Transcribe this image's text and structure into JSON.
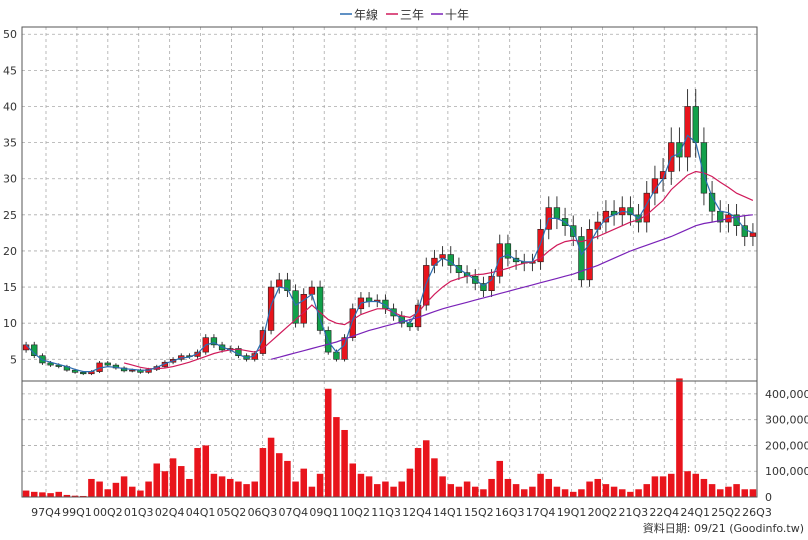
{
  "chart_data": {
    "type": "candlestick",
    "legend": {
      "placement": "top-center",
      "items": [
        {
          "name": "年線",
          "color": "#2b6cb0"
        },
        {
          "name": "三年",
          "color": "#d01a5a"
        },
        {
          "name": "十年",
          "color": "#7a22b8"
        }
      ]
    },
    "price_axis": {
      "ticks": [
        5,
        10,
        15,
        20,
        25,
        30,
        35,
        40,
        45,
        50
      ],
      "ylim": [
        2,
        51
      ],
      "position": "left"
    },
    "volume_axis": {
      "ticks": [
        "0",
        "100,000",
        "200,000",
        "300,000",
        "400,000"
      ],
      "values": [
        0,
        100000,
        200000,
        300000,
        400000
      ],
      "ylim": [
        0,
        450000
      ],
      "position": "right"
    },
    "x_labels": [
      "97Q4",
      "99Q1",
      "00Q2",
      "01Q3",
      "02Q4",
      "04Q1",
      "05Q2",
      "06Q3",
      "07Q4",
      "09Q1",
      "10Q2",
      "11Q3",
      "12Q4",
      "14Q1",
      "15Q2",
      "16Q3",
      "17Q4",
      "19Q1",
      "20Q2",
      "21Q3",
      "22Q4",
      "24Q1",
      "25Q2",
      "26Q3"
    ],
    "grid": true,
    "colors": {
      "up": "#e8141c",
      "down": "#12a04a",
      "volume": "#e8141c"
    },
    "series": {
      "close": [
        7,
        5.5,
        4.5,
        4.2,
        4.0,
        3.5,
        3.2,
        3.0,
        3.3,
        4.5,
        4.2,
        3.8,
        3.4,
        3.5,
        3.2,
        3.6,
        4.0,
        4.6,
        5.0,
        5.5,
        5.4,
        6.0,
        8.0,
        7.0,
        6.3,
        6.5,
        5.5,
        5.0,
        5.8,
        9.0,
        15.0,
        16.0,
        14.5,
        10.0,
        14.0,
        15.0,
        9.0,
        6.0,
        5.0,
        8.0,
        12.0,
        13.5,
        13.0,
        13.2,
        12.0,
        11.0,
        10.0,
        9.5,
        12.5,
        18.0,
        19.0,
        19.5,
        18.0,
        17.0,
        16.5,
        15.5,
        14.5,
        16.5,
        21.0,
        19.0,
        18.5,
        18.3,
        18.5,
        23.0,
        26.0,
        24.5,
        23.5,
        22.0,
        16.0,
        23.0,
        24.0,
        25.5,
        25.0,
        26.0,
        25.0,
        24.0,
        28.0,
        30.0,
        31.0,
        35.0,
        33.0,
        40.0,
        35.0,
        28.0,
        25.5,
        24.0,
        25.0,
        23.5,
        22.0,
        22.5
      ],
      "volume": [
        25000,
        20000,
        18000,
        15000,
        20000,
        8000,
        5000,
        4000,
        70000,
        60000,
        30000,
        55000,
        80000,
        40000,
        25000,
        60000,
        130000,
        100000,
        150000,
        120000,
        70000,
        190000,
        200000,
        90000,
        80000,
        70000,
        60000,
        50000,
        60000,
        190000,
        230000,
        170000,
        140000,
        60000,
        110000,
        40000,
        90000,
        420000,
        310000,
        260000,
        130000,
        90000,
        80000,
        50000,
        60000,
        40000,
        60000,
        110000,
        190000,
        220000,
        150000,
        80000,
        50000,
        40000,
        60000,
        40000,
        30000,
        70000,
        140000,
        70000,
        50000,
        30000,
        40000,
        90000,
        70000,
        40000,
        30000,
        20000,
        30000,
        60000,
        70000,
        50000,
        40000,
        30000,
        20000,
        30000,
        50000,
        80000,
        80000,
        90000,
        460000,
        100000,
        90000,
        70000,
        50000,
        30000,
        40000,
        50000,
        30000,
        30000
      ],
      "ma_year": [
        7.0,
        5.8,
        4.9,
        4.6,
        4.3,
        4.0,
        3.6,
        3.3,
        3.3,
        3.8,
        4.0,
        3.9,
        3.7,
        3.6,
        3.5,
        3.5,
        3.9,
        4.4,
        4.8,
        5.2,
        5.3,
        5.8,
        7.0,
        7.3,
        6.7,
        6.3,
        5.7,
        5.2,
        5.5,
        7.8,
        12.5,
        15.0,
        14.8,
        12.5,
        13.2,
        14.0,
        10.5,
        7.5,
        6.0,
        7.0,
        10.5,
        12.8,
        13.0,
        13.0,
        12.5,
        11.5,
        10.5,
        10.0,
        11.8,
        15.5,
        18.0,
        19.0,
        18.5,
        17.5,
        16.8,
        16.0,
        15.2,
        16.0,
        19.0,
        19.5,
        18.8,
        18.5,
        18.5,
        21.0,
        24.5,
        24.5,
        24.0,
        23.0,
        19.5,
        21.0,
        23.0,
        24.5,
        25.0,
        25.5,
        25.3,
        24.5,
        26.5,
        28.5,
        30.0,
        33.0,
        33.5,
        36.0,
        35.0,
        30.5,
        27.5,
        25.5,
        25.3,
        24.5,
        23.0,
        22.5
      ],
      "ma_3y": [
        null,
        null,
        null,
        null,
        null,
        null,
        null,
        null,
        null,
        null,
        null,
        null,
        4.5,
        4.2,
        3.9,
        3.7,
        3.7,
        3.8,
        4.0,
        4.3,
        4.6,
        5.0,
        5.4,
        5.8,
        6.1,
        6.3,
        6.4,
        6.2,
        6.0,
        6.5,
        7.5,
        8.5,
        9.5,
        10.5,
        11.5,
        12.5,
        11.5,
        10.5,
        10.0,
        9.8,
        10.5,
        11.2,
        11.6,
        12.0,
        12.0,
        11.5,
        11.0,
        10.8,
        11.5,
        12.8,
        14.0,
        15.0,
        15.8,
        16.2,
        16.5,
        16.7,
        16.8,
        17.0,
        17.3,
        17.6,
        18.0,
        18.3,
        18.5,
        19.0,
        20.0,
        20.8,
        21.3,
        21.5,
        21.3,
        21.6,
        22.0,
        22.5,
        23.0,
        23.5,
        24.0,
        24.3,
        25.0,
        26.0,
        27.0,
        28.5,
        29.5,
        30.5,
        31.0,
        30.8,
        30.3,
        29.5,
        28.8,
        28.0,
        27.5,
        27.0
      ],
      "ma_10y": [
        null,
        null,
        null,
        null,
        null,
        null,
        null,
        null,
        null,
        null,
        null,
        null,
        null,
        null,
        null,
        null,
        null,
        null,
        null,
        null,
        null,
        null,
        null,
        null,
        null,
        null,
        null,
        null,
        null,
        null,
        5.0,
        5.3,
        5.6,
        5.9,
        6.2,
        6.5,
        6.8,
        7.1,
        7.4,
        7.8,
        8.2,
        8.6,
        9.0,
        9.3,
        9.6,
        9.9,
        10.2,
        10.5,
        10.8,
        11.2,
        11.6,
        12.0,
        12.3,
        12.6,
        12.9,
        13.2,
        13.5,
        13.8,
        14.1,
        14.4,
        14.7,
        15.0,
        15.3,
        15.6,
        15.9,
        16.2,
        16.5,
        16.8,
        17.2,
        17.6,
        18.0,
        18.5,
        19.0,
        19.5,
        20.0,
        20.4,
        20.8,
        21.2,
        21.6,
        22.0,
        22.5,
        23.0,
        23.5,
        23.8,
        24.0,
        24.2,
        24.5,
        24.7,
        24.9,
        25.0
      ]
    },
    "annotation": "資料日期: 09/21 (Goodinfo.tw)"
  }
}
